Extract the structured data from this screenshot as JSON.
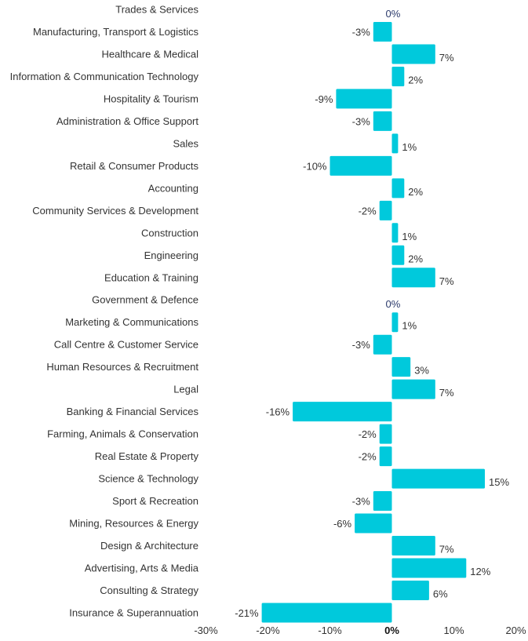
{
  "chart_data": {
    "type": "bar",
    "orientation": "horizontal",
    "categories": [
      "Trades & Services",
      "Manufacturing, Transport & Logistics",
      "Healthcare & Medical",
      "Information & Communication Technology",
      "Hospitality & Tourism",
      "Administration & Office Support",
      "Sales",
      "Retail & Consumer Products",
      "Accounting",
      "Community Services & Development",
      "Construction",
      "Engineering",
      "Education & Training",
      "Government & Defence",
      "Marketing & Communications",
      "Call Centre & Customer Service",
      "Human Resources & Recruitment",
      "Legal",
      "Banking & Financial Services",
      "Farming, Animals & Conservation",
      "Real Estate & Property",
      "Science & Technology",
      "Sport & Recreation",
      "Mining, Resources & Energy",
      "Design & Architecture",
      "Advertising, Arts & Media",
      "Consulting & Strategy",
      "Insurance & Superannuation"
    ],
    "values": [
      0,
      -3,
      7,
      2,
      -9,
      -3,
      1,
      -10,
      2,
      -2,
      1,
      2,
      7,
      0,
      1,
      -3,
      3,
      7,
      -16,
      -2,
      -2,
      15,
      -3,
      -6,
      7,
      12,
      6,
      -21
    ],
    "value_labels": [
      "0%",
      "-3%",
      "7%",
      "2%",
      "-9%",
      "-3%",
      "1%",
      "-10%",
      "2%",
      "-2%",
      "1%",
      "2%",
      "7%",
      "0%",
      "1%",
      "-3%",
      "3%",
      "7%",
      "-16%",
      "-2%",
      "-2%",
      "15%",
      "-3%",
      "-6%",
      "7%",
      "12%",
      "6%",
      "-21%"
    ],
    "xlim": [
      -30,
      20
    ],
    "xticks": [
      -30,
      -20,
      -10,
      0,
      10,
      20
    ],
    "xtick_labels": [
      "-30%",
      "-20%",
      "-10%",
      "0%",
      "10%",
      "20%"
    ],
    "grid": false,
    "colors": {
      "bar": "#00c9dc",
      "label": "#333333",
      "zero_label": "#2b3a6b",
      "zero_tick": "#111111"
    }
  }
}
